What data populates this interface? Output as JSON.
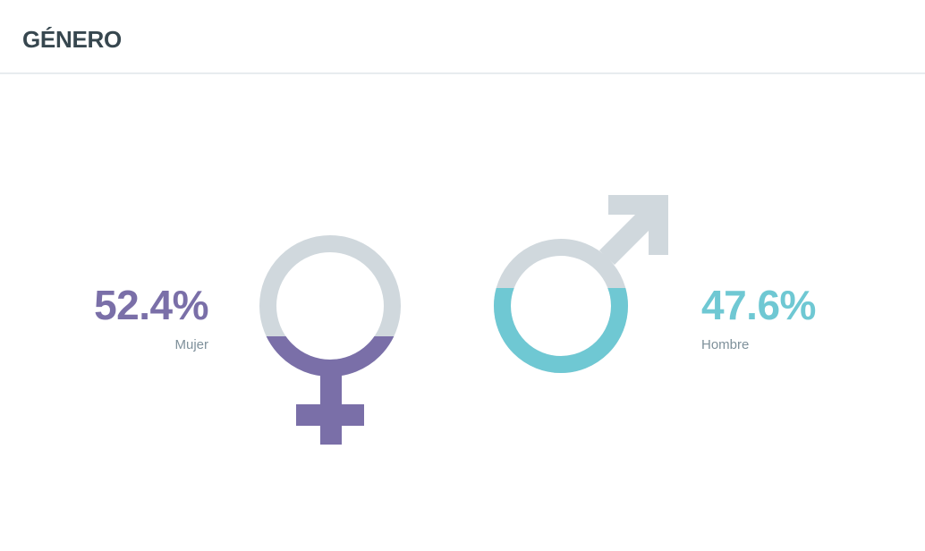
{
  "header": {
    "title": "GÉNERO"
  },
  "chart_data": {
    "type": "pictogram",
    "title": "GÉNERO",
    "series": [
      {
        "name": "Mujer",
        "value": 52.4,
        "label": "52.4%",
        "icon": "female-symbol-icon",
        "color": "#7a6fa8"
      },
      {
        "name": "Hombre",
        "value": 47.6,
        "label": "47.6%",
        "icon": "male-symbol-icon",
        "color": "#6fc8d3"
      }
    ],
    "empty_color": "#d0d8dd"
  }
}
